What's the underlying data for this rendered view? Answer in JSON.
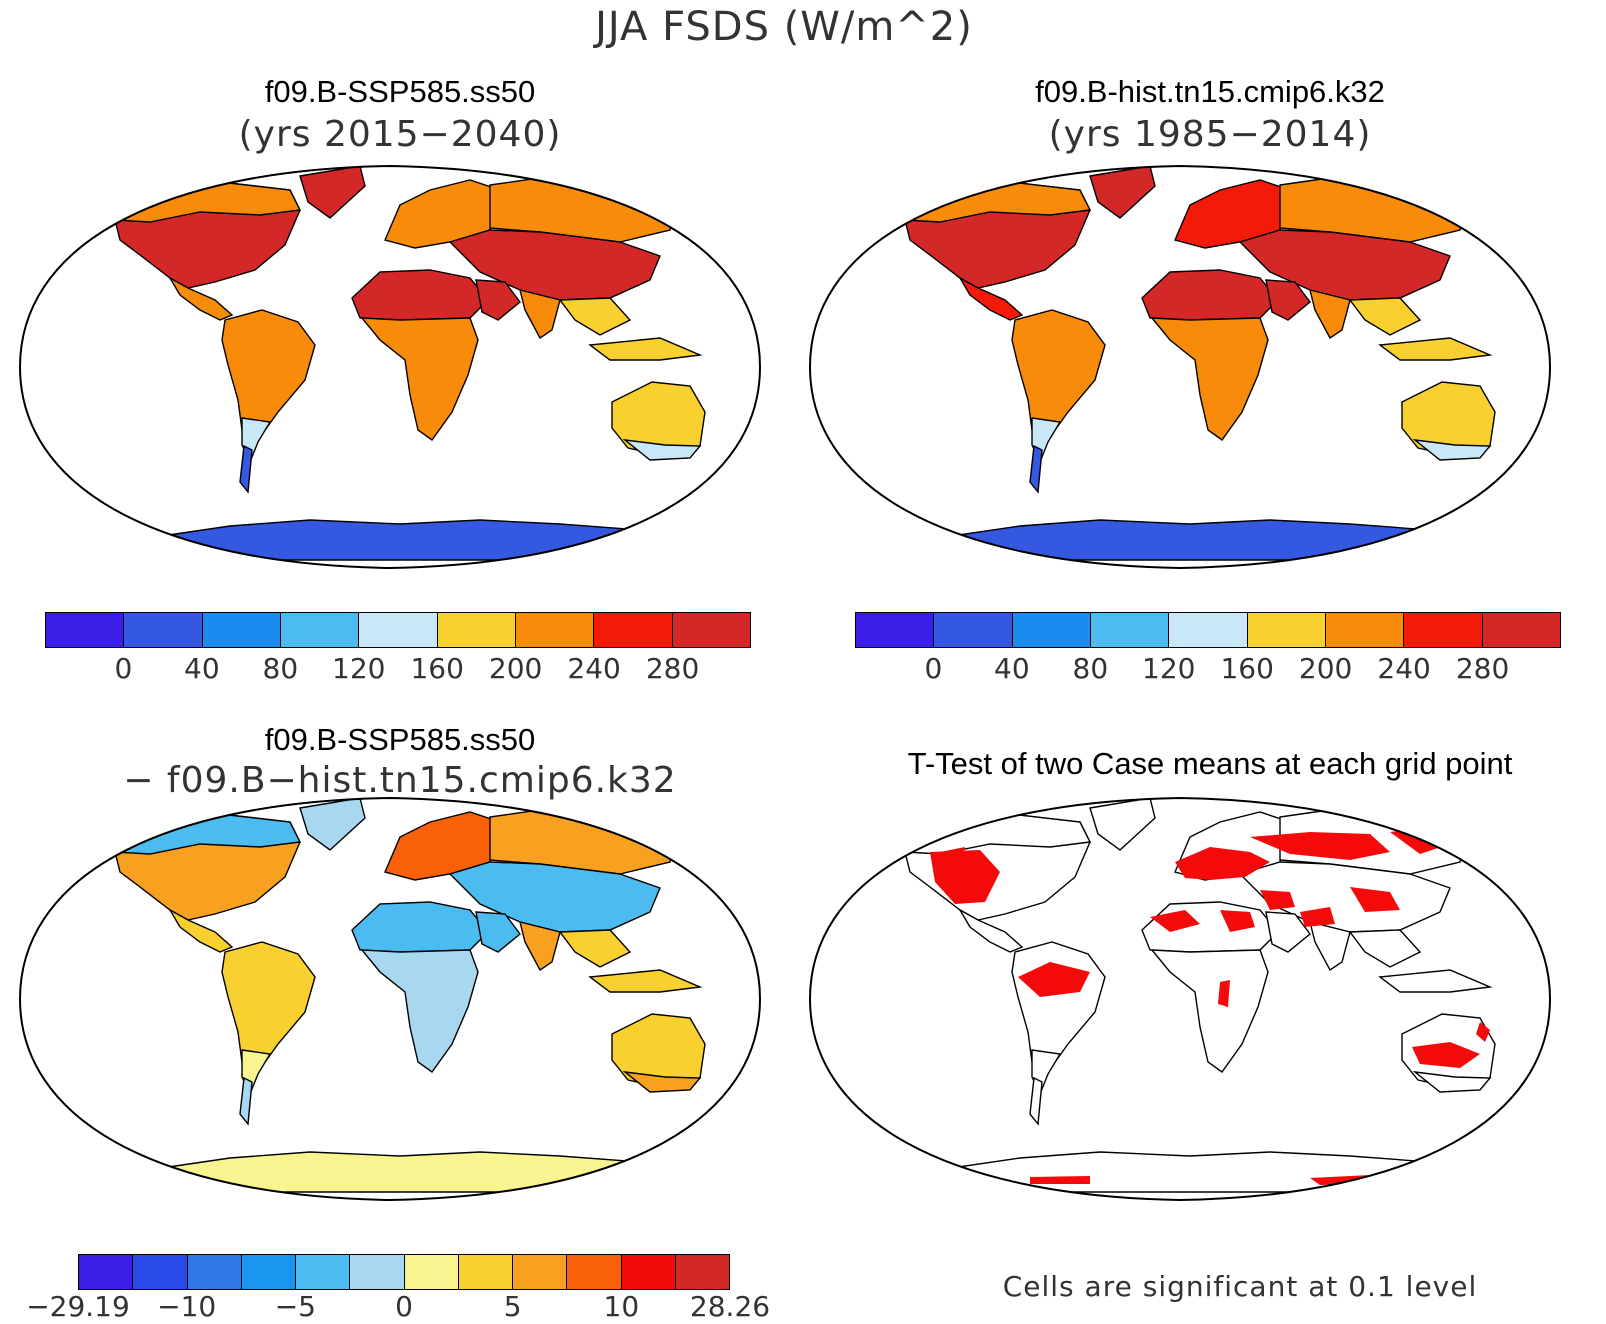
{
  "main_title": "JJA FSDS (W/m^2)",
  "panels": {
    "p1": {
      "title": "f09.B-SSP585.ss50",
      "subtitle": "(yrs 2015−2040)"
    },
    "p2": {
      "title": "f09.B-hist.tn15.cmip6.k32",
      "subtitle": "(yrs 1985−2014)"
    },
    "p3": {
      "title": "f09.B-SSP585.ss50",
      "subtitle": "− f09.B−hist.tn15.cmip6.k32"
    },
    "p4": {
      "title": "T-Test of two Case means at each grid point",
      "note": "Cells are significant at 0.1 level"
    }
  },
  "colorbars": {
    "abs": {
      "colors": [
        "#3a1ee8",
        "#3558e0",
        "#1a8cf0",
        "#4cbcf0",
        "#c8e8f8",
        "#f8d030",
        "#f88c0a",
        "#f41a0a",
        "#d42828"
      ],
      "labels": [
        "0",
        "40",
        "80",
        "120",
        "160",
        "200",
        "240",
        "280"
      ]
    },
    "diff": {
      "colors": [
        "#3a1ee8",
        "#2a4ae8",
        "#3078e8",
        "#1a96f0",
        "#4cbcf0",
        "#a8d8f0",
        "#f8f490",
        "#f8d030",
        "#f8a020",
        "#f8600a",
        "#f00a0a",
        "#d42828"
      ],
      "labels": [
        "−29.19",
        "−10",
        "−5",
        "0",
        "5",
        "10",
        "28.26"
      ]
    }
  },
  "colors": {
    "significant": "#f40a0a",
    "ocean": "#ffffff",
    "antarctica_abs": "#3558e0",
    "antarctica_diff": "#f8f490"
  },
  "maps": [
    {
      "fills": {
        "na": "#d42828",
        "na_n": "#f88c0a",
        "gr": "#d42828",
        "ca": "#f88c0a",
        "sa": "#f88c0a",
        "sa_s": "#c8e8f8",
        "sa_tip": "#3558e0",
        "eu": "#f88c0a",
        "sib": "#f88c0a",
        "as_s": "#d42828",
        "sahara": "#d42828",
        "af_s": "#f88c0a",
        "ara": "#d42828",
        "india": "#f88c0a",
        "sea": "#f8d030",
        "indo": "#f8d030",
        "aus": "#f8d030",
        "aus_s": "#c8e8f8",
        "ant": "#3558e0"
      }
    },
    {
      "fills": {
        "na": "#d42828",
        "na_n": "#f88c0a",
        "gr": "#d42828",
        "ca": "#f41a0a",
        "sa": "#f88c0a",
        "sa_s": "#c8e8f8",
        "sa_tip": "#3558e0",
        "eu": "#f41a0a",
        "sib": "#f88c0a",
        "as_s": "#d42828",
        "sahara": "#d42828",
        "af_s": "#f88c0a",
        "ara": "#d42828",
        "india": "#f88c0a",
        "sea": "#f8d030",
        "indo": "#f8d030",
        "aus": "#f8d030",
        "aus_s": "#c8e8f8",
        "ant": "#3558e0"
      }
    },
    {
      "fills": {
        "na": "#f8a020",
        "na_n": "#4cbcf0",
        "gr": "#a8d8f0",
        "ca": "#f8d030",
        "sa": "#f8d030",
        "sa_s": "#f8f490",
        "sa_tip": "#a8d8f0",
        "eu": "#f8600a",
        "sib": "#f8a020",
        "as_s": "#4cbcf0",
        "sahara": "#4cbcf0",
        "af_s": "#a8d8f0",
        "ara": "#4cbcf0",
        "india": "#f8a020",
        "sea": "#f8d030",
        "indo": "#f8d030",
        "aus": "#f8d030",
        "aus_s": "#f8a020",
        "ant": "#f8f490"
      }
    },
    {
      "fills": {
        "na": "#ffffff",
        "na_n": "#ffffff",
        "gr": "#ffffff",
        "ca": "#ffffff",
        "sa": "#ffffff",
        "sa_s": "#ffffff",
        "sa_tip": "#ffffff",
        "eu": "#ffffff",
        "sib": "#ffffff",
        "as_s": "#ffffff",
        "sahara": "#ffffff",
        "af_s": "#ffffff",
        "ara": "#ffffff",
        "india": "#ffffff",
        "sea": "#ffffff",
        "indo": "#ffffff",
        "aus": "#ffffff",
        "aus_s": "#ffffff",
        "ant": "#ffffff"
      }
    }
  ]
}
